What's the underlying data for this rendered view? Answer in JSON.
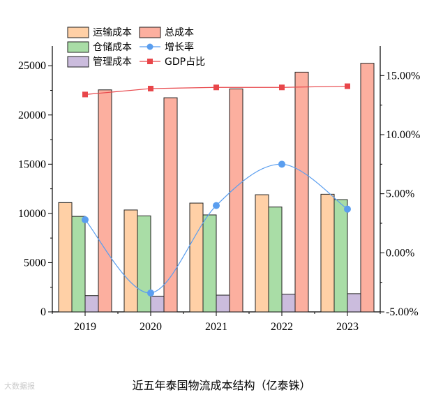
{
  "chart_data": {
    "type": "bar",
    "title": "近五年泰国物流成本结构（亿泰铢）",
    "categories": [
      "2019",
      "2020",
      "2021",
      "2022",
      "2023"
    ],
    "series": [
      {
        "name": "运输成本",
        "type": "bar",
        "axis": "left",
        "color": "#FFD0A6",
        "values": [
          11100,
          10350,
          11050,
          11900,
          11950
        ]
      },
      {
        "name": "仓储成本",
        "type": "bar",
        "axis": "left",
        "color": "#A9DDA6",
        "values": [
          9700,
          9750,
          9850,
          10650,
          11400
        ]
      },
      {
        "name": "管理成本",
        "type": "bar",
        "axis": "left",
        "color": "#CBBCDD",
        "values": [
          1650,
          1600,
          1700,
          1800,
          1850
        ]
      },
      {
        "name": "总成本",
        "type": "bar",
        "axis": "left",
        "color": "#FCAF9F",
        "values": [
          22550,
          21750,
          22650,
          24350,
          25250
        ]
      },
      {
        "name": "增长率",
        "type": "line",
        "axis": "right",
        "color": "#5A9EEF",
        "values": [
          2.8,
          -3.4,
          4.0,
          7.5,
          3.7
        ]
      },
      {
        "name": "GDP占比",
        "type": "line",
        "axis": "right",
        "color": "#E8464A",
        "values": [
          13.4,
          13.9,
          14.0,
          14.0,
          14.1
        ]
      }
    ],
    "ylim": [
      0,
      27000
    ],
    "y_ticks": [
      0,
      5000,
      10000,
      15000,
      20000,
      25000
    ],
    "y2lim": [
      -5.0,
      17.5
    ],
    "y2_ticks": [
      -5.0,
      0.0,
      5.0,
      10.0,
      15.0
    ],
    "y2_tick_labels": [
      "-5.00%",
      "0.00%",
      "5.00%",
      "10.00%",
      "15.00%"
    ],
    "legend_placement": "top-left",
    "grid": false
  },
  "watermark": "大数据报"
}
